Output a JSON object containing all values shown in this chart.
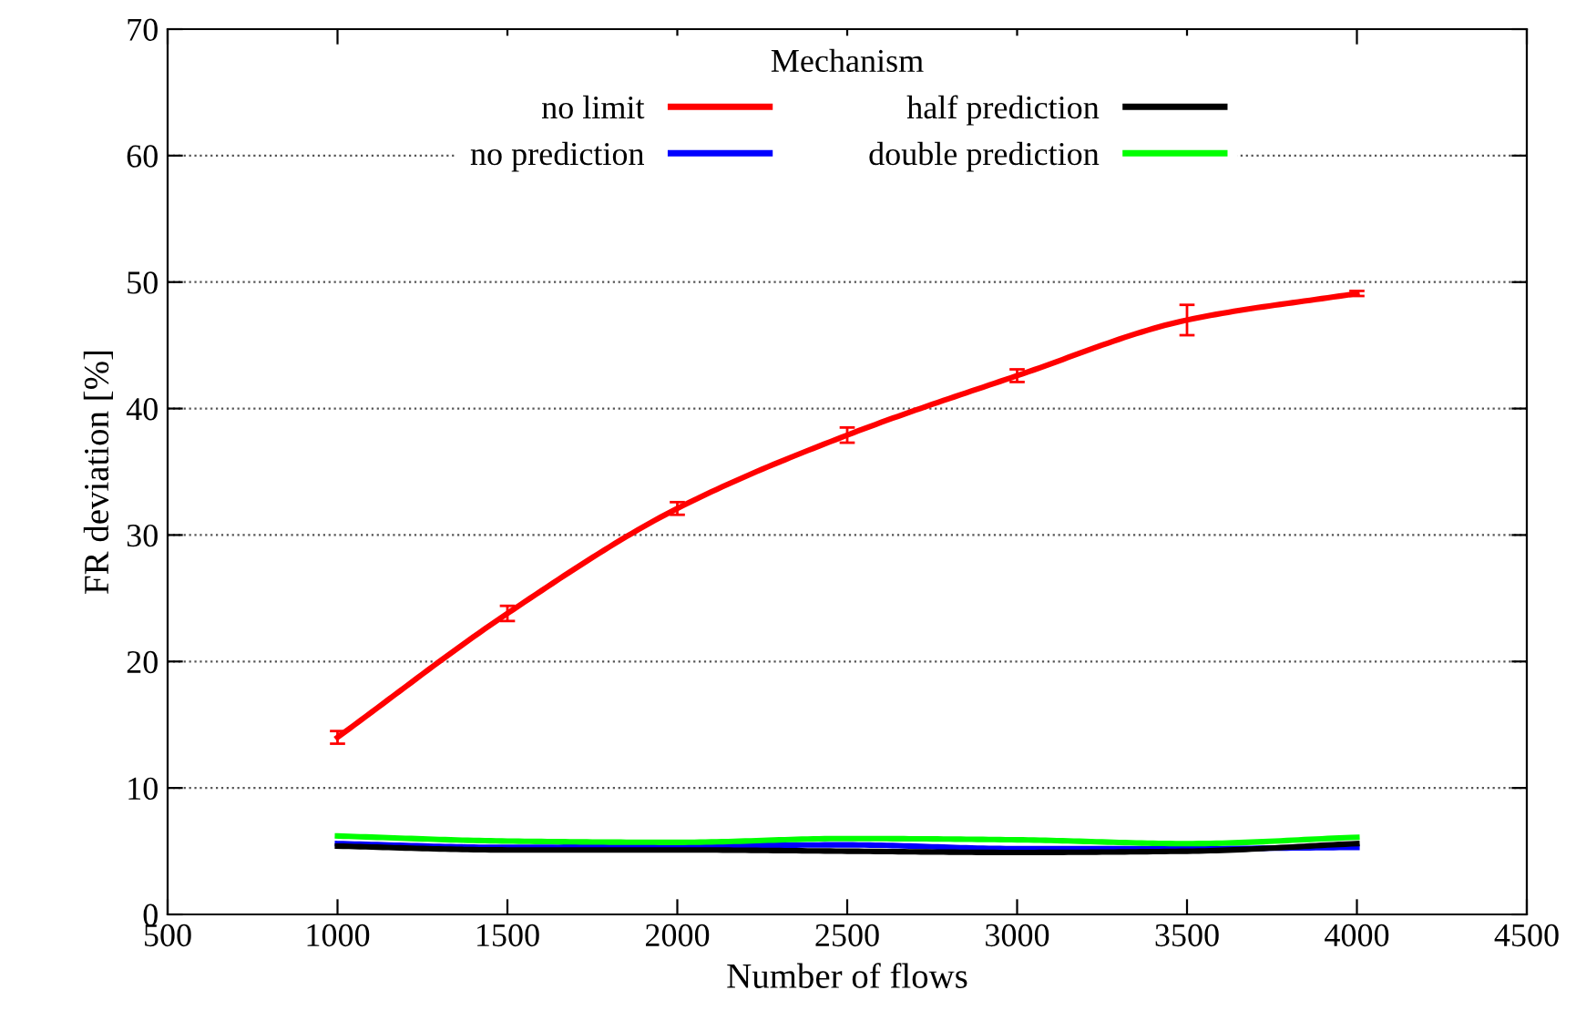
{
  "chart_data": {
    "type": "line",
    "xlabel": "Number of flows",
    "ylabel": "FR deviation [%]",
    "legend_title": "Mechanism",
    "legend": "top",
    "grid": "y",
    "line_style": "solid",
    "marker": "none",
    "x": [
      1000,
      1500,
      2000,
      2500,
      3000,
      3500,
      4000
    ],
    "xlim": [
      500,
      4500
    ],
    "xticks": [
      500,
      1000,
      1500,
      2000,
      2500,
      3000,
      3500,
      4000,
      4500
    ],
    "ylim": [
      0,
      70
    ],
    "yticks": [
      0,
      10,
      20,
      30,
      40,
      50,
      60,
      70
    ],
    "series": [
      {
        "name": "no limit",
        "color": "#ff0000",
        "values": [
          14.0,
          23.8,
          32.1,
          37.9,
          42.6,
          47.0,
          49.1
        ],
        "errors": [
          0.5,
          0.6,
          0.5,
          0.6,
          0.5,
          1.2,
          0.2
        ]
      },
      {
        "name": "no prediction",
        "color": "#0000ff",
        "values": [
          5.6,
          5.3,
          5.4,
          5.5,
          5.2,
          5.2,
          5.3
        ]
      },
      {
        "name": "half prediction",
        "color": "#000000",
        "values": [
          5.4,
          5.1,
          5.1,
          5.0,
          4.9,
          5.0,
          5.6
        ]
      },
      {
        "name": "double prediction",
        "color": "#00ff00",
        "values": [
          6.2,
          5.8,
          5.7,
          6.0,
          5.9,
          5.6,
          6.1
        ]
      }
    ]
  }
}
